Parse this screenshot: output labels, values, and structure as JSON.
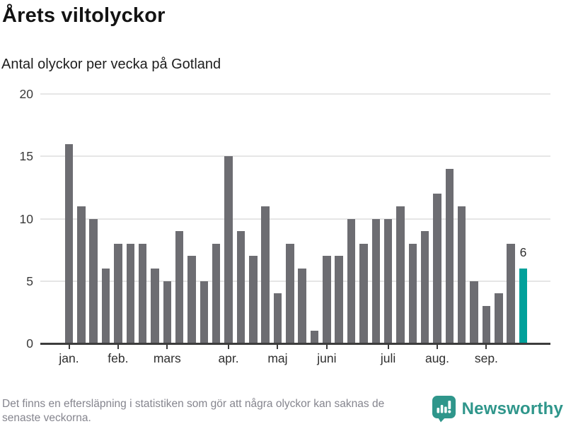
{
  "header": {
    "title": "Årets viltolyckor",
    "subtitle": "Antal olyckor per vecka på Gotland"
  },
  "chart_data": {
    "type": "bar",
    "title": "Årets viltolyckor",
    "subtitle": "Antal olyckor per vecka på Gotland",
    "xlabel": "",
    "ylabel": "",
    "ylim": [
      0,
      20
    ],
    "yticks": [
      0,
      5,
      10,
      15,
      20
    ],
    "grid": true,
    "legend": "none",
    "values": [
      16,
      11,
      10,
      6,
      8,
      8,
      8,
      6,
      5,
      9,
      7,
      5,
      8,
      15,
      9,
      7,
      11,
      4,
      8,
      6,
      1,
      7,
      7,
      10,
      8,
      10,
      10,
      11,
      8,
      9,
      12,
      14,
      11,
      5,
      3,
      4,
      8,
      6
    ],
    "month_ticks": [
      {
        "label": "jan.",
        "bar_index": 0
      },
      {
        "label": "feb.",
        "bar_index": 4
      },
      {
        "label": "mars",
        "bar_index": 8
      },
      {
        "label": "apr.",
        "bar_index": 13
      },
      {
        "label": "maj",
        "bar_index": 17
      },
      {
        "label": "juni",
        "bar_index": 21
      },
      {
        "label": "juli",
        "bar_index": 26
      },
      {
        "label": "aug.",
        "bar_index": 30
      },
      {
        "label": "sep.",
        "bar_index": 34
      }
    ],
    "highlighted_bar_index": 37,
    "highlighted_value_label": "6",
    "colors": {
      "bar": "#6d6d72",
      "highlight": "#00a09a",
      "gridline": "#e6e6e6",
      "axis": "#3c3c3c",
      "tick_label": "#3a3a3a"
    }
  },
  "footer": {
    "note_line1": "Det finns en eftersläpning i statistiken som gör att några olyckor kan saknas de",
    "note_line2": "senaste veckorna.",
    "brand_name": "Newsworthy",
    "brand_color": "#2f968b",
    "brand_icon": "bar-chart-exclamation-bubble-icon"
  }
}
